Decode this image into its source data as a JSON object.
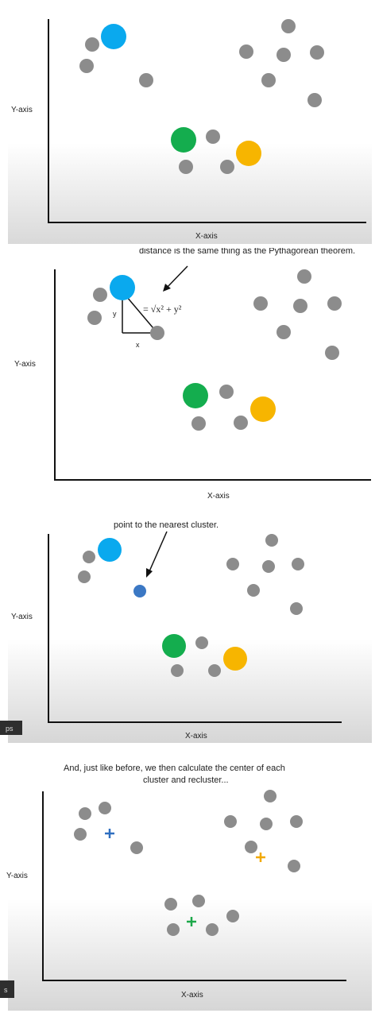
{
  "colors": {
    "point": "#8c8c8c",
    "blue_cluster": "#0aa9ee",
    "green_cluster": "#14ad4e",
    "orange_cluster": "#f7b500",
    "assigned_point": "#3b78c4",
    "centroid_blue": "#2f6fc0",
    "centroid_orange": "#f2a900",
    "centroid_green": "#1da84a",
    "axis": "#111111"
  },
  "panels": [
    {
      "xlabel": "X-axis",
      "ylabel": "Y-axis",
      "caption": ""
    },
    {
      "xlabel": "X-axis",
      "ylabel": "Y-axis",
      "caption": "distance is the same thing as the Pythagorean theorem.",
      "formula": "= √x² + y²",
      "triangle_x": "x",
      "triangle_y": "y"
    },
    {
      "xlabel": "X-axis",
      "ylabel": "Y-axis",
      "caption": "point to the nearest cluster.",
      "badge": "ps"
    },
    {
      "xlabel": "X-axis",
      "ylabel": "Y-axis",
      "caption_line1": "And, just like before, we then calculate the center of each",
      "caption_line2": "cluster and recluster...",
      "badge": "s"
    }
  ]
}
